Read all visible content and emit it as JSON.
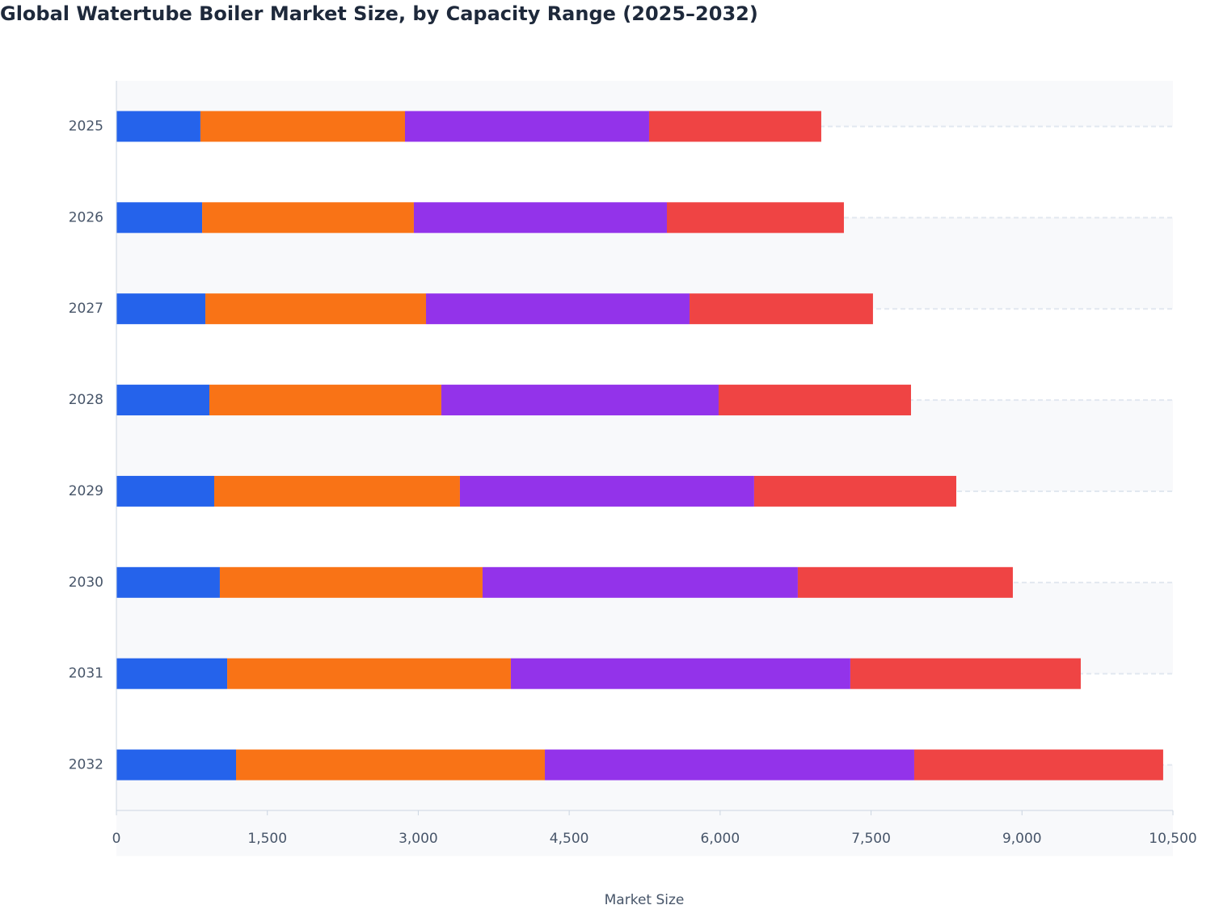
{
  "chart_data": {
    "type": "stacked_bar_horizontal",
    "title": "Global Watertube Boiler Market Size, by Capacity Range (2025–2032)",
    "x_label": "Market Size",
    "categories": [
      "2025",
      "2026",
      "2027",
      "2028",
      "2029",
      "2030",
      "2031",
      "2032"
    ],
    "series": [
      {
        "color": "#2563eb",
        "values": [
          835,
          852,
          884,
          924,
          972,
          1028,
          1101,
          1189
        ]
      },
      {
        "color": "#f97316",
        "values": [
          2033,
          2104,
          2193,
          2305,
          2442,
          2611,
          2819,
          3069
        ]
      },
      {
        "color": "#9333ea",
        "values": [
          2426,
          2515,
          2619,
          2756,
          2924,
          3133,
          3374,
          3671
        ]
      },
      {
        "color": "#ef4444",
        "values": [
          1711,
          1759,
          1823,
          1912,
          2009,
          2137,
          2290,
          2474
        ]
      }
    ],
    "xlim": [
      0,
      10500
    ],
    "xticks": [
      0,
      {
        "value": 1500,
        "label": "1,500"
      },
      {
        "value": 3000,
        "label": "3,000"
      },
      {
        "value": 4500,
        "label": "4,500"
      },
      {
        "value": 6000,
        "label": "6,000"
      },
      {
        "value": 7500,
        "label": "7,500"
      },
      {
        "value": 9000,
        "label": "9,000"
      },
      {
        "value": 10500,
        "label": "10,500"
      }
    ],
    "grid": true
  }
}
